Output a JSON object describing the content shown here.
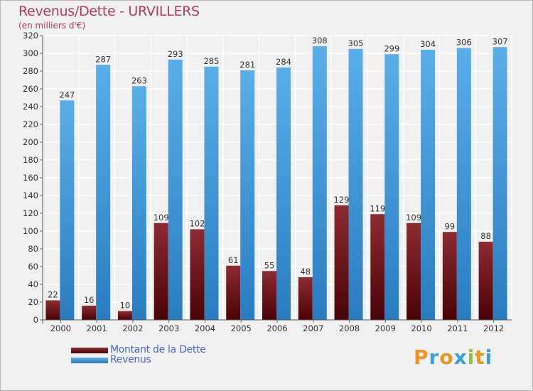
{
  "title": "Revenus/Dette - URVILLERS",
  "subtitle": "(en milliers d'€)",
  "logo": {
    "text": "Proxiti",
    "letters": [
      {
        "ch": "P",
        "color": "#e8961e"
      },
      {
        "ch": "r",
        "color": "#3aa0d8"
      },
      {
        "ch": "o",
        "color": "#e8961e"
      },
      {
        "ch": "x",
        "color": "#3aa0d8"
      },
      {
        "ch": "i",
        "color": "#8cc63f"
      },
      {
        "ch": "t",
        "color": "#e8961e"
      },
      {
        "ch": "i",
        "color": "#3aa0d8"
      }
    ]
  },
  "legend": [
    {
      "label": "Montant de la Dette",
      "color": "#6b0f14"
    },
    {
      "label": "Revenus",
      "color": "#4aa3e0"
    }
  ],
  "chart_data": {
    "type": "bar",
    "categories": [
      "2000",
      "2001",
      "2002",
      "2003",
      "2004",
      "2005",
      "2006",
      "2007",
      "2008",
      "2009",
      "2010",
      "2011",
      "2012"
    ],
    "series": [
      {
        "name": "Montant de la Dette",
        "color": "#6b0f14",
        "values": [
          22,
          16,
          10,
          109,
          102,
          61,
          55,
          48,
          129,
          119,
          109,
          99,
          88
        ]
      },
      {
        "name": "Revenus",
        "color": "#4aa3e0",
        "values": [
          247,
          287,
          263,
          293,
          285,
          281,
          284,
          308,
          305,
          299,
          304,
          306,
          307
        ]
      }
    ],
    "yticks": [
      0,
      20,
      40,
      60,
      80,
      100,
      120,
      140,
      160,
      180,
      200,
      220,
      240,
      260,
      280,
      300,
      320
    ],
    "ylim": [
      0,
      320
    ],
    "xlabel": "",
    "ylabel": "",
    "grid": true,
    "legend_position": "bottom-left"
  }
}
